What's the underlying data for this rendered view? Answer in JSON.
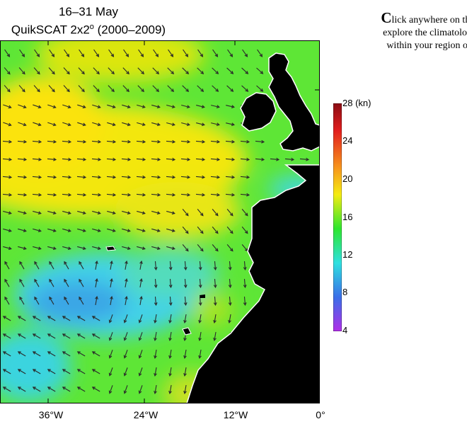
{
  "title": {
    "period": "16–31 May",
    "dataset": "QuikSCAT 2x2",
    "degree_mark": "o",
    "years": "(2000–2009)"
  },
  "instructions": {
    "initial": "C",
    "line1": "lick anywhere on this",
    "line2": "explore the climatologi",
    "line3": "within your region of"
  },
  "colorbar": {
    "unit": "(kn)",
    "ticks": [
      "28",
      "24",
      "20",
      "16",
      "12",
      "8",
      "4"
    ],
    "range": [
      4,
      28
    ]
  },
  "axis": {
    "x_ticks": [
      "36°W",
      "24°W",
      "12°W",
      "0°"
    ]
  },
  "map": {
    "variable": "wind speed and direction",
    "land_color": "#000000",
    "arrow_color": "#2a2a2a"
  }
}
